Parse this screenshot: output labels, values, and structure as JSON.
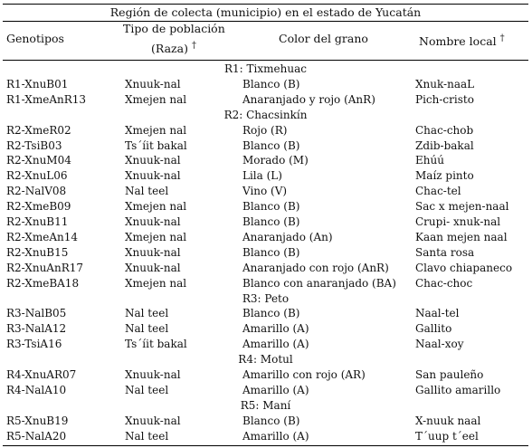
{
  "title": "Región de colecta (municipio) en el estado de Yucatán",
  "headers": {
    "genotipos": "Genotipos",
    "tipo_line1": "Tipo de población",
    "tipo_line2": "(Raza)",
    "tipo_dagger": "†",
    "color": "Color del grano",
    "nombre": "Nombre local",
    "nombre_dagger": "†"
  },
  "sections": [
    {
      "region": "R1: Tixmehuac",
      "rows": [
        [
          "R1-XnuB01",
          "Xnuuk-nal",
          "Blanco (B)",
          "Xnuk-naaL"
        ],
        [
          "R1-XmeAnR13",
          "Xmejen nal",
          "Anaranjado y rojo (AnR)",
          "Pich-cristo"
        ]
      ]
    },
    {
      "region": "R2: Chacsinkín",
      "rows": [
        [
          "R2-XmeR02",
          "Xmejen nal",
          "Rojo (R)",
          "Chac-chob"
        ],
        [
          "R2-TsiB03",
          "Ts´íit bakal",
          "Blanco (B)",
          "Zdib-bakal"
        ],
        [
          "R2-XnuM04",
          "Xnuuk-nal",
          "Morado (M)",
          "Ehúú"
        ],
        [
          "R2-XnuL06",
          "Xnuuk-nal",
          "Lila (L)",
          "Maíz pinto"
        ],
        [
          "R2-NalV08",
          "Nal teel",
          "Vino (V)",
          "Chac-tel"
        ],
        [
          "R2-XmeB09",
          "Xmejen nal",
          "Blanco (B)",
          "Sac x mejen-naal"
        ],
        [
          "R2-XnuB11",
          "Xnuuk-nal",
          "Blanco (B)",
          "Crupi- xnuk-nal"
        ],
        [
          "R2-XmeAn14",
          "Xmejen nal",
          "Anaranjado (An)",
          "Kaan mejen naal"
        ],
        [
          "R2-XnuB15",
          "Xnuuk-nal",
          "Blanco (B)",
          "Santa rosa"
        ],
        [
          "R2-XnuAnR17",
          "Xnuuk-nal",
          "Anaranjado con rojo (AnR)",
          "Clavo chiapaneco"
        ],
        [
          "R2-XmeBA18",
          "Xmejen nal",
          "Blanco con anaranjado (BA)",
          "Chac-choc"
        ]
      ]
    },
    {
      "region": "R3: Peto",
      "rows": [
        [
          "R3-NalB05",
          "Nal teel",
          "Blanco (B)",
          "Naal-tel"
        ],
        [
          "R3-NalA12",
          "Nal teel",
          "Amarillo (A)",
          "Gallito"
        ],
        [
          "R3-TsiA16",
          "Ts´íit bakal",
          "Amarillo (A)",
          "Naal-xoy"
        ]
      ]
    },
    {
      "region": "R4: Motul",
      "rows": [
        [
          "R4-XnuAR07",
          "Xnuuk-nal",
          "Amarillo con rojo (AR)",
          "San pauleño"
        ],
        [
          "R4-NalA10",
          "Nal teel",
          "Amarillo (A)",
          "Gallito amarillo"
        ]
      ]
    },
    {
      "region": "R5: Maní",
      "rows": [
        [
          "R5-XnuB19",
          "Xnuuk-nal",
          "Blanco (B)",
          "X-nuuk naal"
        ],
        [
          "R5-NalA20",
          "Nal teel",
          "Amarillo (A)",
          "T´uup t´eel"
        ]
      ]
    }
  ]
}
